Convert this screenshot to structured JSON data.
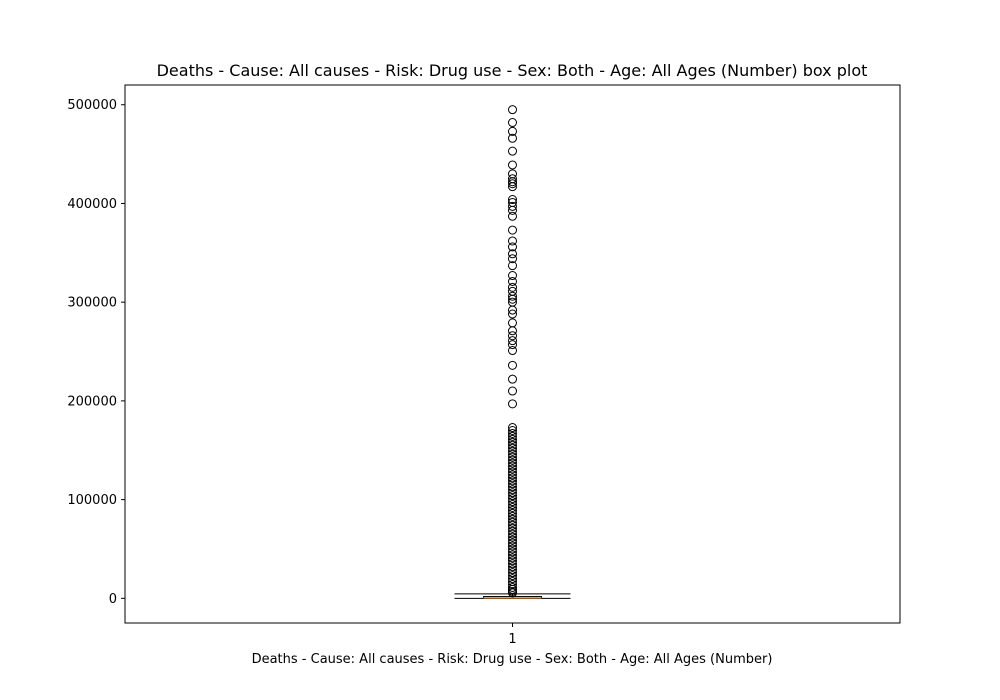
{
  "chart_data": {
    "type": "box",
    "title": "Deaths - Cause: All causes - Risk: Drug use - Sex: Both - Age: All Ages (Number) box plot",
    "xlabel": "Deaths - Cause: All causes - Risk: Drug use - Sex: Both - Age: All Ages (Number)",
    "ylabel": "",
    "categories": [
      "1"
    ],
    "ylim": [
      -25000,
      520000
    ],
    "y_ticks": [
      0,
      100000,
      200000,
      300000,
      400000,
      500000
    ],
    "y_tick_labels": [
      "0",
      "100000",
      "200000",
      "300000",
      "400000",
      "500000"
    ],
    "grid": false,
    "legend": "none",
    "colors": {
      "box": "#000000",
      "median": "#ff7f0e",
      "outlier": "#000000"
    },
    "boxes": [
      {
        "category": "1",
        "whisker_low": 0,
        "q1": 150,
        "median": 450,
        "q3": 1800,
        "whisker_high": 4500,
        "outliers": [
          495000,
          482000,
          473000,
          466000,
          453000,
          439000,
          430000,
          425000,
          422000,
          420000,
          417000,
          404000,
          401000,
          397000,
          393000,
          387000,
          373000,
          362000,
          356000,
          349000,
          344000,
          337000,
          327000,
          321000,
          315000,
          311000,
          306000,
          303000,
          300000,
          292000,
          288000,
          279000,
          271000,
          266000,
          261000,
          257000,
          251000,
          236000,
          222000,
          210000,
          197000,
          173000,
          170000,
          167000,
          164000,
          161000,
          158000,
          155000,
          152000,
          149000,
          146000,
          143000,
          140000,
          137000,
          134000,
          131000,
          128000,
          125000,
          122000,
          119000,
          116000,
          113000,
          110000,
          107000,
          104000,
          101000,
          98000,
          95000,
          92000,
          89000,
          86000,
          83000,
          80000,
          77000,
          74000,
          71000,
          68000,
          65000,
          62000,
          59000,
          56000,
          53000,
          50000,
          47000,
          44000,
          41000,
          38000,
          35000,
          32000,
          29000,
          26000,
          23000,
          20000,
          17000,
          14000,
          11000,
          9000,
          7000,
          5500
        ]
      }
    ]
  }
}
